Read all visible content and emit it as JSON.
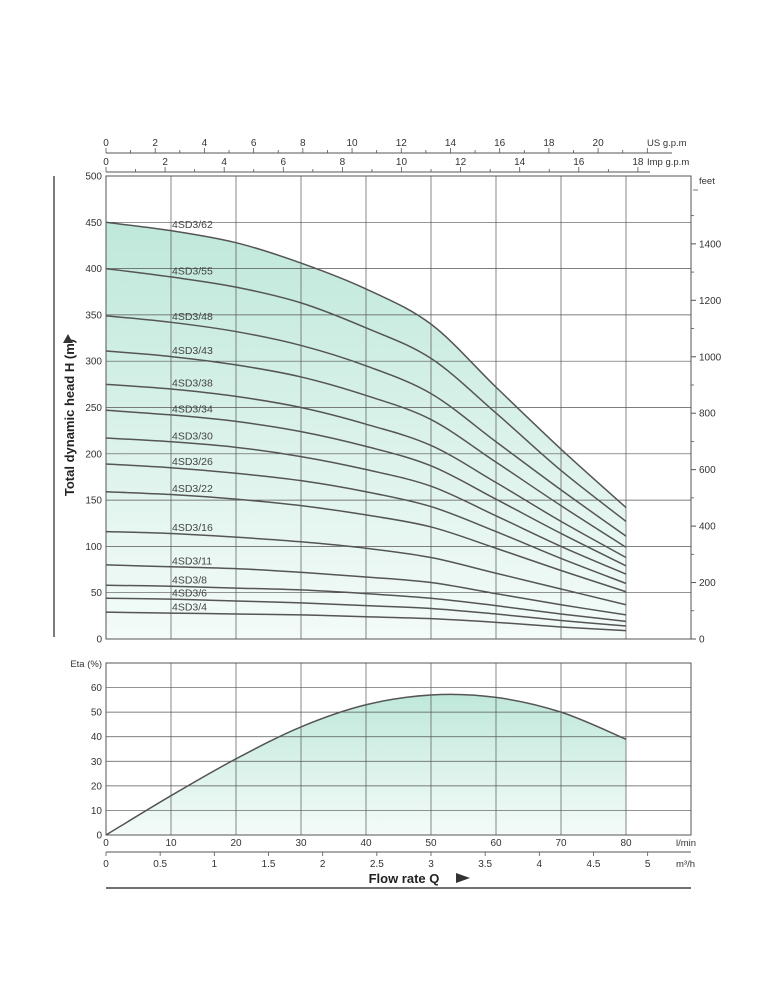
{
  "chart_data": [
    {
      "type": "line",
      "xlabel": "Flow rate  Q",
      "ylabel": "Total dynamic head   H (m)",
      "xlim": [
        0,
        90
      ],
      "ylim": [
        0,
        500
      ],
      "x_unit": "l/min",
      "x2_unit": "m³/h",
      "x2_ticks": [
        "0",
        "0.5",
        "1",
        "1.5",
        "2",
        "2.5",
        "3",
        "3.5",
        "4",
        "4.5",
        "5"
      ],
      "top_axis_us": {
        "unit": "US g.p.m",
        "ticks": [
          "0",
          "2",
          "4",
          "6",
          "8",
          "10",
          "12",
          "14",
          "16",
          "18",
          "20"
        ]
      },
      "top_axis_imp": {
        "unit": "Imp g.p.m",
        "ticks": [
          "0",
          "2",
          "4",
          "6",
          "8",
          "10",
          "12",
          "14",
          "16",
          "18"
        ]
      },
      "right_axis": {
        "unit": "feet",
        "ticks": [
          "0",
          "200",
          "400",
          "600",
          "800",
          "1000",
          "1200",
          "1400"
        ]
      },
      "y_ticks": [
        "0",
        "50",
        "100",
        "150",
        "200",
        "250",
        "300",
        "350",
        "400",
        "450",
        "500"
      ],
      "x": [
        0,
        10,
        20,
        30,
        40,
        50,
        60,
        70,
        80
      ],
      "series": [
        {
          "name": "4SD3/62",
          "values": [
            450,
            441,
            428,
            406,
            378,
            340,
            272,
            205,
            142
          ]
        },
        {
          "name": "4SD3/55",
          "values": [
            400,
            391,
            380,
            363,
            336,
            303,
            244,
            182,
            127
          ]
        },
        {
          "name": "4SD3/48",
          "values": [
            349,
            342,
            332,
            317,
            295,
            265,
            213,
            161,
            111
          ]
        },
        {
          "name": "4SD3/43",
          "values": [
            311,
            305,
            296,
            283,
            263,
            237,
            191,
            144,
            99
          ]
        },
        {
          "name": "4SD3/38",
          "values": [
            275,
            270,
            262,
            250,
            232,
            209,
            169,
            127,
            88
          ]
        },
        {
          "name": "4SD3/34",
          "values": [
            247,
            242,
            235,
            224,
            208,
            187,
            151,
            114,
            79
          ]
        },
        {
          "name": "4SD3/30",
          "values": [
            217,
            213,
            207,
            197,
            183,
            165,
            133,
            100,
            70
          ]
        },
        {
          "name": "4SD3/26",
          "values": [
            189,
            185,
            179,
            171,
            159,
            143,
            116,
            87,
            60
          ]
        },
        {
          "name": "4SD3/22",
          "values": [
            159,
            156,
            151,
            144,
            134,
            121,
            98,
            74,
            51
          ]
        },
        {
          "name": "4SD3/16",
          "values": [
            116,
            114,
            110,
            105,
            98,
            88,
            71,
            54,
            37
          ]
        },
        {
          "name": "4SD3/11",
          "values": [
            80,
            78,
            76,
            72,
            67,
            61,
            49,
            37,
            26
          ]
        },
        {
          "name": "4SD3/8",
          "values": [
            58,
            57,
            55,
            53,
            49,
            44,
            36,
            27,
            19
          ]
        },
        {
          "name": "4SD3/6",
          "values": [
            44,
            43,
            41,
            39,
            36,
            33,
            27,
            20,
            14
          ]
        },
        {
          "name": "4SD3/4",
          "values": [
            29,
            28,
            27,
            26,
            24,
            22,
            18,
            13,
            9
          ]
        }
      ]
    },
    {
      "type": "area",
      "ylabel": "Eta (%)",
      "xlim": [
        0,
        90
      ],
      "ylim": [
        0,
        70
      ],
      "y_ticks": [
        "0",
        "10",
        "20",
        "30",
        "40",
        "50",
        "60"
      ],
      "x_ticks": [
        "0",
        "10",
        "20",
        "30",
        "40",
        "50",
        "60",
        "70",
        "80"
      ],
      "x": [
        0,
        10,
        20,
        30,
        40,
        50,
        60,
        70,
        80
      ],
      "values": [
        0,
        16,
        31,
        44,
        53,
        57,
        56,
        50,
        39
      ]
    }
  ]
}
